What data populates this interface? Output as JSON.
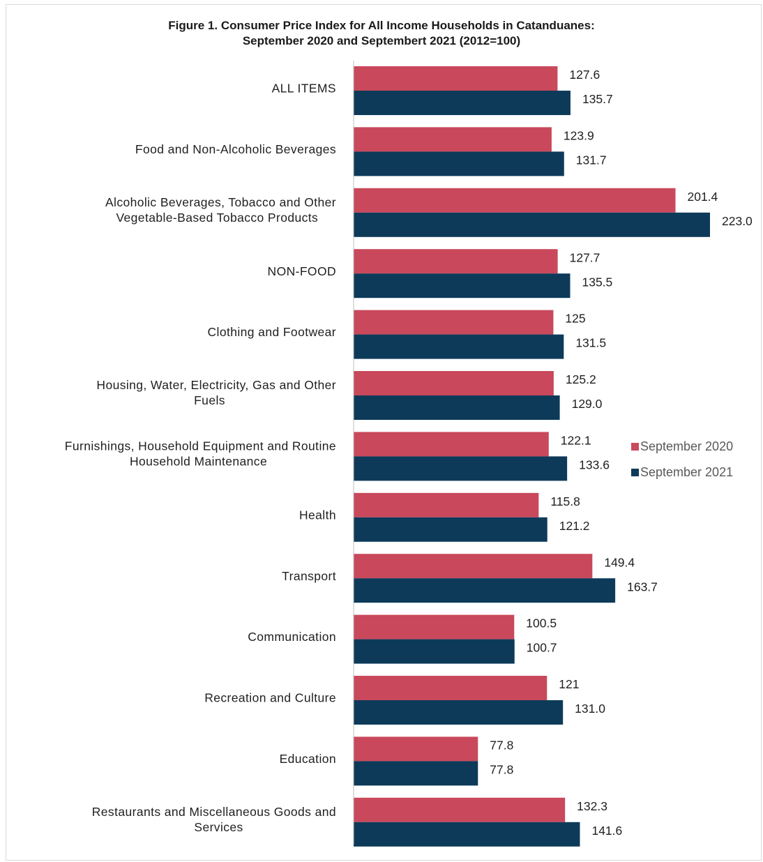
{
  "colors": {
    "series_2020": "#c9485b",
    "series_2021": "#0d3a59",
    "axis": "#bfbfbf",
    "text": "#1f1f1f",
    "legend_text": "#595959"
  },
  "chart_data": {
    "type": "bar",
    "orientation": "horizontal",
    "title": "Figure 1. Consumer Price Index for All Income Households in Catanduanes:",
    "subtitle": "September 2020 and Septembert 2021 (2012=100)",
    "categories": [
      "ALL ITEMS",
      "Food and Non-Alcoholic Beverages",
      "Alcoholic Beverages, Tobacco and Other Vegetable-Based Tobacco Products",
      "NON-FOOD",
      "Clothing and Footwear",
      "Housing, Water, Electricity, Gas and Other Fuels",
      "Furnishings, Household Equipment and Routine Household Maintenance",
      "Health",
      "Transport",
      "Communication",
      "Recreation and Culture",
      "Education",
      "Restaurants and Miscellaneous Goods and Services"
    ],
    "category_lines": [
      [
        "ALL ITEMS"
      ],
      [
        "Food and Non-Alcoholic Beverages"
      ],
      [
        "Alcoholic Beverages, Tobacco and Other",
        "Vegetable-Based Tobacco Products"
      ],
      [
        "NON-FOOD"
      ],
      [
        "Clothing and Footwear"
      ],
      [
        "Housing, Water, Electricity, Gas and Other",
        "Fuels"
      ],
      [
        "Furnishings, Household Equipment and Routine",
        "Household Maintenance"
      ],
      [
        "Health"
      ],
      [
        "Transport"
      ],
      [
        "Communication"
      ],
      [
        "Recreation and Culture"
      ],
      [
        "Education"
      ],
      [
        "Restaurants and Miscellaneous Goods and",
        "Services"
      ]
    ],
    "series": [
      {
        "name": "September 2020",
        "values": [
          127.6,
          123.9,
          201.4,
          127.7,
          125,
          125.2,
          122.1,
          115.8,
          149.4,
          100.5,
          121,
          77.8,
          132.3
        ],
        "labels": [
          "127.6",
          "123.9",
          "201.4",
          "127.7",
          "125",
          "125.2",
          "122.1",
          "115.8",
          "149.4",
          "100.5",
          "121",
          "77.8",
          "132.3"
        ]
      },
      {
        "name": "September 2021",
        "values": [
          135.7,
          131.7,
          223.0,
          135.5,
          131.5,
          129.0,
          133.6,
          121.2,
          163.7,
          100.7,
          131.0,
          77.8,
          141.6
        ],
        "labels": [
          "135.7",
          "131.7",
          "223.0",
          "135.5",
          "131.5",
          "129.0",
          "133.6",
          "121.2",
          "163.7",
          "100.7",
          "131.0",
          "77.8",
          "141.6"
        ]
      }
    ],
    "xlim": [
      0,
      223.0
    ],
    "grid": false,
    "legend_position": "right"
  }
}
